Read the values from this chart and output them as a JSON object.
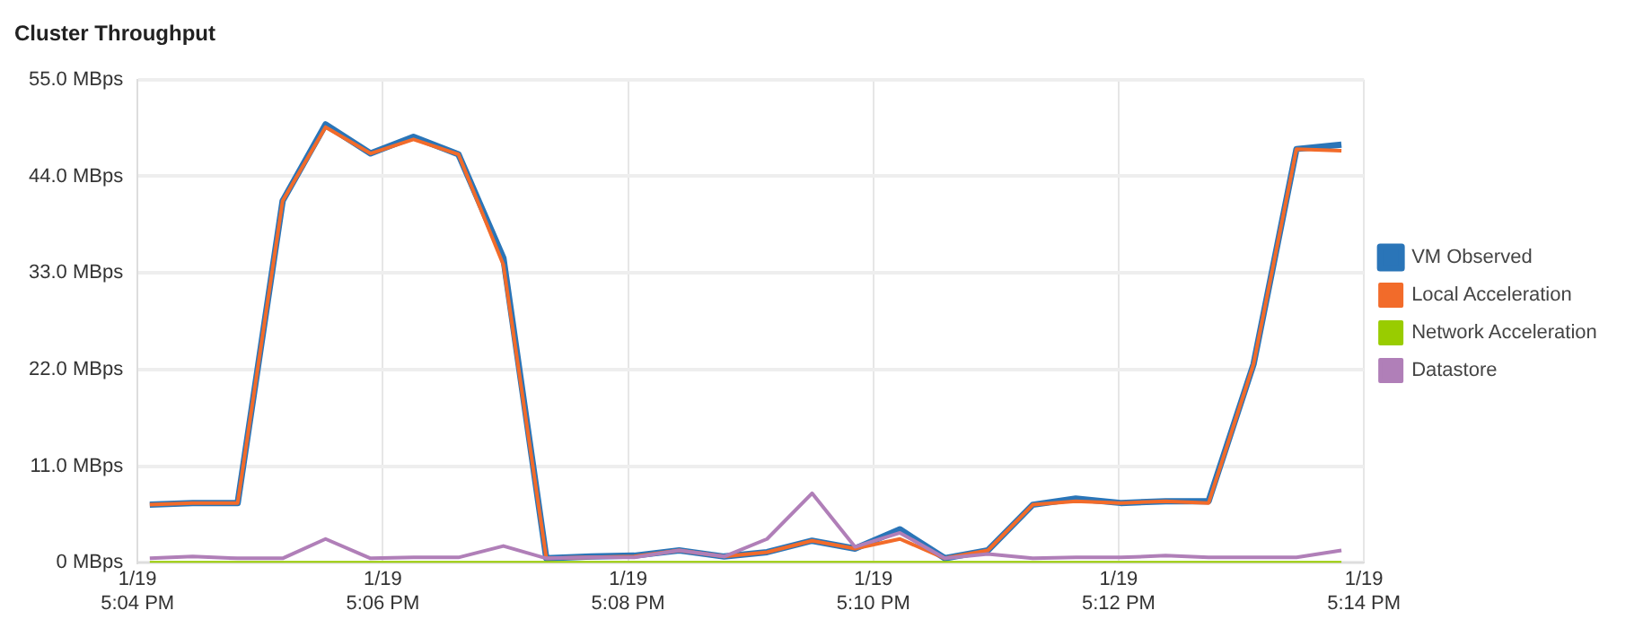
{
  "chart_data": {
    "type": "line",
    "title": "Cluster Throughput",
    "x": [
      "--01-19T17:04:06",
      "--01-19T17:04:27",
      "--01-19T17:04:49",
      "--01-19T17:05:11",
      "--01-19T17:05:32",
      "--01-19T17:05:54",
      "--01-19T17:06:15",
      "--01-19T17:06:37",
      "--01-19T17:06:59",
      "--01-19T17:07:20",
      "--01-19T17:07:42",
      "--01-19T17:08:03",
      "--01-19T17:08:25",
      "--01-19T17:08:47",
      "--01-19T17:09:08",
      "--01-19T17:09:30",
      "--01-19T17:09:51",
      "--01-19T17:10:13",
      "--01-19T17:10:35",
      "--01-19T17:10:56",
      "--01-19T17:11:18",
      "--01-19T17:11:39",
      "--01-19T17:12:01",
      "--01-19T17:12:23",
      "--01-19T17:12:44",
      "--01-19T17:13:06",
      "--01-19T17:13:27",
      "--01-19T17:13:49"
    ],
    "series": [
      {
        "name": "VM Observed",
        "color": "#2a75b8",
        "values": [
          6.6,
          6.8,
          6.8,
          41.2,
          49.9,
          46.6,
          48.5,
          46.5,
          34.7,
          0.5,
          0.7,
          0.8,
          1.4,
          0.7,
          1.2,
          2.5,
          1.6,
          3.8,
          0.5,
          1.4,
          6.6,
          7.3,
          6.8,
          7.0,
          7.0,
          22.6,
          47.1,
          47.6
        ]
      },
      {
        "name": "Local Acceleration",
        "color": "#f26b2a",
        "values": [
          6.6,
          6.8,
          6.8,
          41.2,
          49.6,
          46.6,
          48.2,
          46.5,
          33.9,
          0.5,
          0.6,
          0.7,
          1.4,
          0.7,
          1.2,
          2.5,
          1.6,
          2.7,
          0.5,
          1.4,
          6.6,
          7.0,
          6.8,
          7.0,
          6.8,
          22.6,
          47.1,
          46.9
        ]
      },
      {
        "name": "Network Acceleration",
        "color": "#99cc00",
        "values": [
          0,
          0,
          0,
          0,
          0,
          0,
          0,
          0,
          0,
          0,
          0,
          0,
          0,
          0,
          0,
          0,
          0,
          0,
          0,
          0,
          0,
          0,
          0,
          0,
          0,
          0,
          0,
          0
        ]
      },
      {
        "name": "Datastore",
        "color": "#b07fb8",
        "values": [
          0.5,
          0.7,
          0.5,
          0.5,
          2.7,
          0.5,
          0.6,
          0.6,
          1.9,
          0.5,
          0.6,
          0.6,
          1.4,
          0.7,
          2.7,
          7.9,
          1.8,
          3.4,
          0.5,
          1.0,
          0.5,
          0.6,
          0.6,
          0.8,
          0.6,
          0.6,
          0.6,
          1.4
        ]
      }
    ],
    "xlim": [
      "--01-19T17:04",
      "--01-19T17:14"
    ],
    "xticks": [
      {
        "value": "--01-19T17:04",
        "label": "1/19 5:04 PM"
      },
      {
        "value": "--01-19T17:06",
        "label": "1/19 5:06 PM"
      },
      {
        "value": "--01-19T17:08",
        "label": "1/19 5:08 PM"
      },
      {
        "value": "--01-19T17:10",
        "label": "1/19 5:10 PM"
      },
      {
        "value": "--01-19T17:12",
        "label": "1/19 5:12 PM"
      },
      {
        "value": "--01-19T17:14",
        "label": "1/19 5:14 PM"
      }
    ],
    "ylim": [
      0,
      55
    ],
    "yticks": [
      {
        "value": 0,
        "label": "0 MBps"
      },
      {
        "value": 11,
        "label": "11.0 MBps"
      },
      {
        "value": 22,
        "label": "22.0 MBps"
      },
      {
        "value": 33,
        "label": "33.0 MBps"
      },
      {
        "value": 44,
        "label": "44.0 MBps"
      },
      {
        "value": 55,
        "label": "55.0 MBps"
      }
    ],
    "grid": true,
    "legend": "right",
    "marker": "none",
    "line_style": "solid"
  }
}
